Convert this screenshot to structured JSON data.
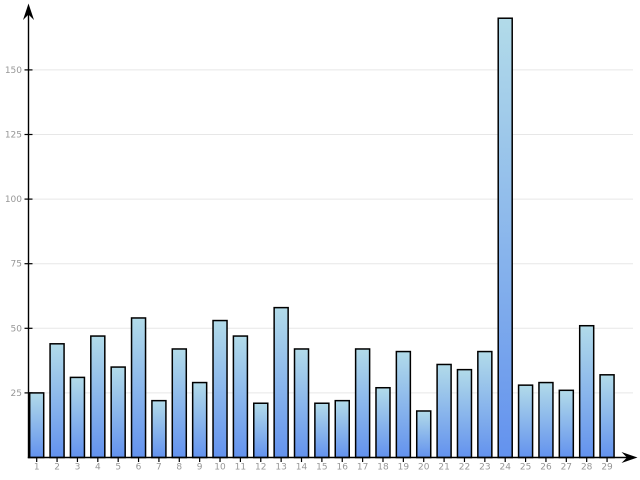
{
  "chart_data": {
    "type": "bar",
    "title": "",
    "xlabel": "",
    "ylabel": "",
    "categories": [
      "1",
      "2",
      "3",
      "4",
      "5",
      "6",
      "7",
      "8",
      "9",
      "10",
      "11",
      "12",
      "13",
      "14",
      "15",
      "16",
      "17",
      "18",
      "19",
      "20",
      "21",
      "22",
      "23",
      "24",
      "25",
      "26",
      "27",
      "28",
      "29"
    ],
    "values": [
      25,
      44,
      31,
      47,
      35,
      54,
      22,
      42,
      29,
      53,
      47,
      21,
      58,
      42,
      21,
      22,
      42,
      27,
      41,
      18,
      36,
      34,
      41,
      170,
      28,
      29,
      26,
      51,
      32
    ],
    "y_ticks": [
      25,
      50,
      75,
      100,
      125,
      150
    ],
    "ylim": [
      0,
      175
    ],
    "grid": "horizontal-only",
    "legend_position": "none",
    "style": {
      "background": "#ffffff",
      "bar_gradient_top": "#b2dbe9",
      "bar_gradient_bottom": "#6392ee",
      "bar_stroke": "#000000",
      "gridline_color": "#e7e7e7",
      "axis_color": "#000000",
      "tick_label_color": "#979797"
    }
  }
}
